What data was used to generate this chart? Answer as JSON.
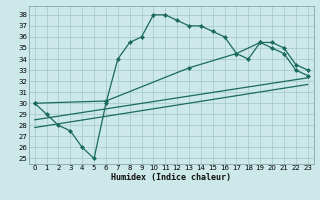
{
  "xlabel": "Humidex (Indice chaleur)",
  "bg_color": "#cce8e8",
  "grid_color": "#aacccc",
  "line_color": "#1a6b5a",
  "xlim": [
    -0.5,
    23.5
  ],
  "ylim": [
    24.5,
    38.8
  ],
  "xticks": [
    0,
    1,
    2,
    3,
    4,
    5,
    6,
    7,
    8,
    9,
    10,
    11,
    12,
    13,
    14,
    15,
    16,
    17,
    18,
    19,
    20,
    21,
    22,
    23
  ],
  "yticks": [
    25,
    26,
    27,
    28,
    29,
    30,
    31,
    32,
    33,
    34,
    35,
    36,
    37,
    38
  ],
  "curve1_x": [
    0,
    1,
    2,
    3,
    4,
    5,
    6,
    7,
    8,
    9,
    10,
    11,
    12,
    13,
    14,
    15,
    16,
    17,
    18,
    19,
    20,
    21,
    22,
    23
  ],
  "curve1_y": [
    30,
    29,
    28,
    27.5,
    26,
    25,
    30,
    34,
    35.5,
    36,
    38,
    38,
    37.5,
    37,
    37,
    36.5,
    36,
    34.5,
    34,
    35.5,
    35,
    34.5,
    33,
    32.5
  ],
  "curve2_x": [
    0,
    23
  ],
  "curve2_y": [
    28.5,
    32.3
  ],
  "curve3_x": [
    0,
    23
  ],
  "curve3_y": [
    27.8,
    31.7
  ],
  "curve4_x": [
    0,
    6,
    13,
    17,
    19,
    20,
    21,
    22,
    23
  ],
  "curve4_y": [
    30,
    30.2,
    33.2,
    34.5,
    35.5,
    35.5,
    35,
    33.5,
    33.0
  ]
}
